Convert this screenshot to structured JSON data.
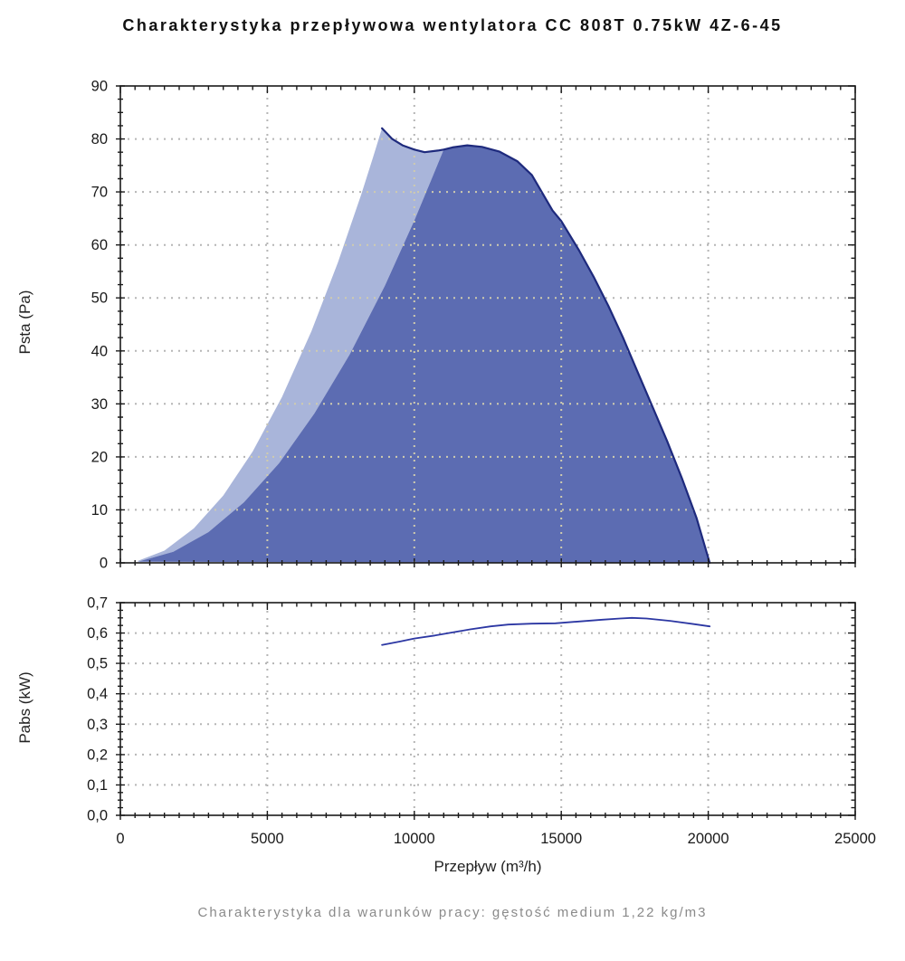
{
  "title": "Charakterystyka przepływowa wentylatora CC 808T 0.75kW 4Z-6-45",
  "caption": "Charakterystyka dla warunków pracy: gęstość medium 1,22 kg/m3",
  "x_axis": {
    "label": "Przepływ (m³/h)",
    "min": 0,
    "max": 25000,
    "major": 5000,
    "minor": 500,
    "tick_labels": [
      "0",
      "5000",
      "10000",
      "15000",
      "20000",
      "25000"
    ]
  },
  "colors": {
    "fill_dark": "#5c6cb2",
    "fill_light": "#a9b5da",
    "curve_top": "#1e2a7d",
    "curve_power": "#2c37a3",
    "grid": "#b5b5b5",
    "grid_on_fill": "#cfcbae",
    "axis": "#1a1a1a",
    "caption_gray": "#8a8a8a"
  },
  "chart_data": [
    {
      "type": "area",
      "panel": "top",
      "ylabel": "Psta (Pa)",
      "ylim": [
        0,
        90
      ],
      "ymajor": 10,
      "yminor": 2.5,
      "ytick_labels": [
        "0",
        "10",
        "20",
        "30",
        "40",
        "50",
        "60",
        "70",
        "80",
        "90"
      ],
      "grid": "dotted",
      "series": [
        {
          "name": "fan-pressure-curve",
          "points": [
            [
              8900,
              82
            ],
            [
              9250,
              80
            ],
            [
              9600,
              78.8
            ],
            [
              10000,
              78
            ],
            [
              10350,
              77.5
            ],
            [
              10800,
              77.8
            ],
            [
              11000,
              78
            ],
            [
              11300,
              78.4
            ],
            [
              11800,
              78.8
            ],
            [
              12300,
              78.5
            ],
            [
              12900,
              77.6
            ],
            [
              13500,
              75.8
            ],
            [
              14000,
              73.2
            ],
            [
              14700,
              66.5
            ],
            [
              15000,
              64.5
            ],
            [
              15600,
              59
            ],
            [
              16100,
              54
            ],
            [
              16600,
              48.5
            ],
            [
              17100,
              42.5
            ],
            [
              17600,
              36
            ],
            [
              18100,
              29.5
            ],
            [
              18600,
              23
            ],
            [
              19100,
              16
            ],
            [
              19600,
              8.5
            ],
            [
              20050,
              0
            ]
          ]
        },
        {
          "name": "selection-area-left-boundary",
          "points": [
            [
              600,
              0.4
            ],
            [
              1500,
              2.3
            ],
            [
              2500,
              6.5
            ],
            [
              3500,
              12.7
            ],
            [
              4500,
              21
            ],
            [
              5500,
              31.3
            ],
            [
              6500,
              43.7
            ],
            [
              7400,
              56.7
            ],
            [
              8200,
              69.6
            ],
            [
              8600,
              76.6
            ],
            [
              8900,
              82
            ]
          ]
        },
        {
          "name": "work-area-left-boundary",
          "points": [
            [
              600,
              0.2
            ],
            [
              1800,
              2.1
            ],
            [
              3000,
              5.8
            ],
            [
              4200,
              11.4
            ],
            [
              5400,
              18.8
            ],
            [
              6600,
              28.2
            ],
            [
              7800,
              39.3
            ],
            [
              9000,
              52.3
            ],
            [
              10000,
              64.6
            ],
            [
              10600,
              72.6
            ],
            [
              11000,
              78
            ]
          ]
        }
      ]
    },
    {
      "type": "line",
      "panel": "bottom",
      "ylabel": "Pabs (kW)",
      "ylim": [
        0,
        0.7
      ],
      "ymajor": 0.1,
      "yminor": 0.025,
      "ytick_labels": [
        "0,0",
        "0,1",
        "0,2",
        "0,3",
        "0,4",
        "0,5",
        "0,6",
        "0,7"
      ],
      "grid": "dotted",
      "series": [
        {
          "name": "power-curve",
          "points": [
            [
              8900,
              0.561
            ],
            [
              9500,
              0.572
            ],
            [
              10000,
              0.582
            ],
            [
              10700,
              0.592
            ],
            [
              11300,
              0.602
            ],
            [
              11900,
              0.612
            ],
            [
              12600,
              0.622
            ],
            [
              13200,
              0.628
            ],
            [
              14000,
              0.631
            ],
            [
              14800,
              0.632
            ],
            [
              15600,
              0.638
            ],
            [
              16400,
              0.644
            ],
            [
              17000,
              0.648
            ],
            [
              17400,
              0.65
            ],
            [
              17900,
              0.648
            ],
            [
              18700,
              0.64
            ],
            [
              19400,
              0.631
            ],
            [
              20050,
              0.622
            ]
          ]
        }
      ]
    }
  ]
}
